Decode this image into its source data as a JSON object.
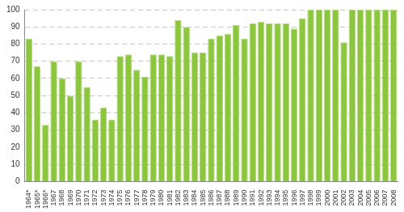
{
  "chart_data": {
    "type": "bar",
    "categories": [
      "1964*",
      "1965*",
      "1966*",
      "1967",
      "1968",
      "1969",
      "1970",
      "1971",
      "1972",
      "1973",
      "1974",
      "1975",
      "1976",
      "1977",
      "1978",
      "1979",
      "1980",
      "1981",
      "1982",
      "1983",
      "1984",
      "1985",
      "1986",
      "1987",
      "1988",
      "1989",
      "1990",
      "1991",
      "1992",
      "1993",
      "1994",
      "1995",
      "1996",
      "1997",
      "1998",
      "1999",
      "2000",
      "2001",
      "2002",
      "2003",
      "2004",
      "2005",
      "2006",
      "2007",
      "2008"
    ],
    "values": [
      83,
      67,
      33,
      70,
      60,
      50,
      70,
      55,
      36,
      43,
      36,
      73,
      74,
      65,
      61,
      74,
      74,
      73,
      94,
      90,
      75,
      75,
      83,
      85,
      86,
      91,
      83,
      92,
      93,
      92,
      92,
      92,
      89,
      95,
      100,
      100,
      100,
      100,
      81,
      100,
      100,
      100,
      100,
      100,
      100
    ],
    "color": "#8cc63f",
    "ylim": [
      0,
      100
    ],
    "yticks": [
      0,
      10,
      20,
      30,
      40,
      50,
      60,
      70,
      80,
      90,
      100
    ],
    "grid": true
  }
}
